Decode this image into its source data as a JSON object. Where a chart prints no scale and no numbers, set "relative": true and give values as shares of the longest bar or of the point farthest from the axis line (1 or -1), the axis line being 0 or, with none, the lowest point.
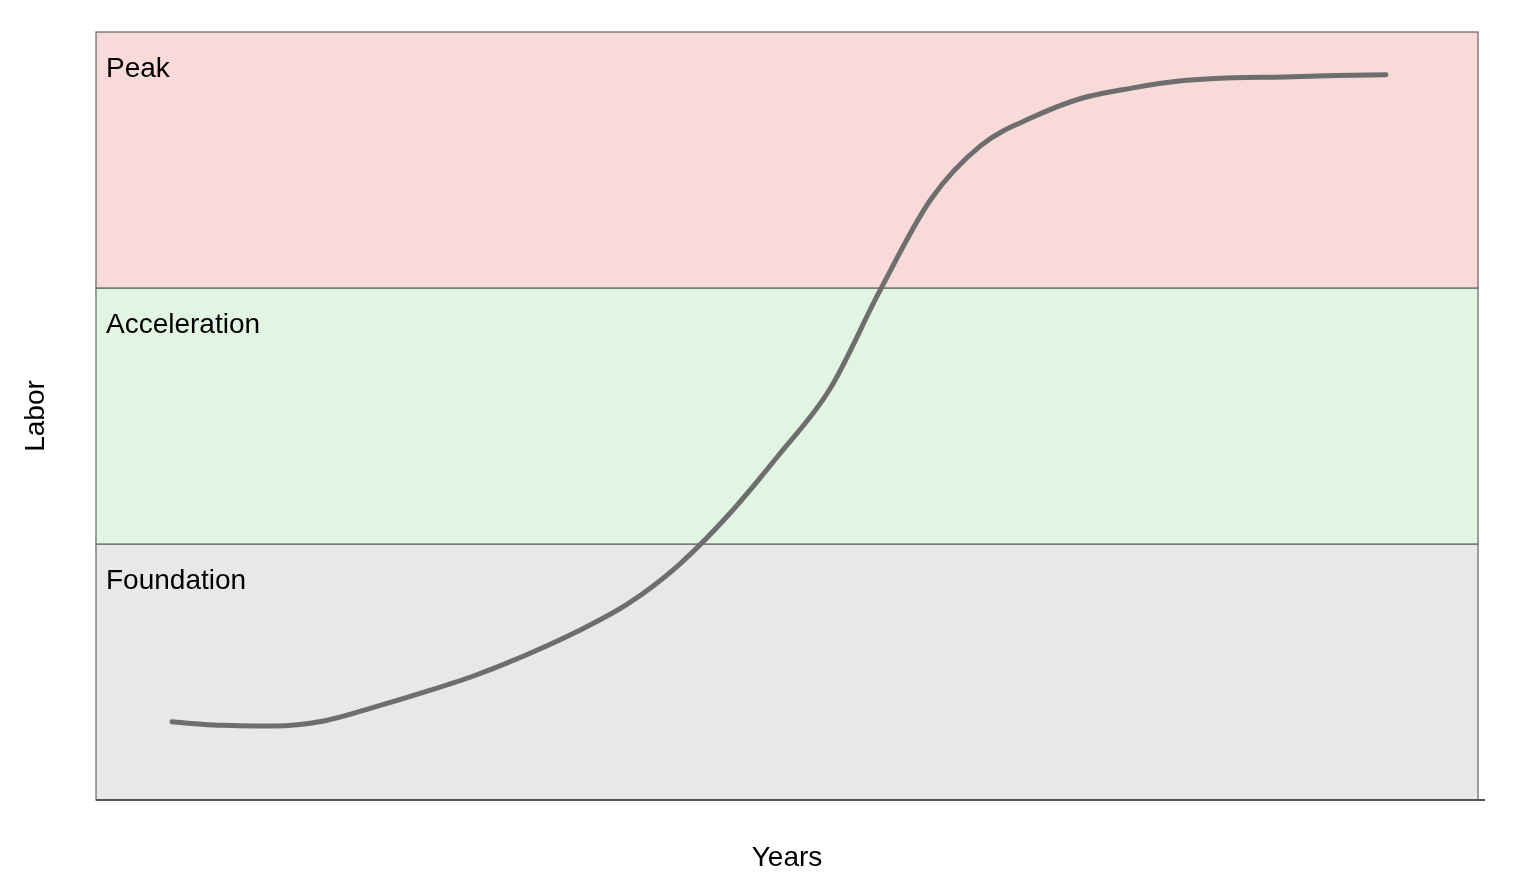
{
  "chart_data": {
    "type": "line",
    "relative": true,
    "xlabel": "Years",
    "ylabel": "Labor",
    "categories": [
      null,
      null,
      null,
      null,
      null,
      null,
      null,
      null,
      null,
      null,
      null,
      null,
      null,
      null,
      null,
      null,
      null,
      null,
      null,
      null,
      null,
      null,
      null,
      null,
      null
    ],
    "series": [
      {
        "color": "#6e6e6e",
        "values": [
          0.108,
          0.103,
          0.102,
          0.109,
          0.128,
          0.149,
          0.172,
          0.2,
          0.232,
          0.27,
          0.323,
          0.393,
          0.476,
          0.566,
          0.703,
          0.828,
          0.903,
          0.941,
          0.968,
          0.982,
          0.992,
          0.996,
          0.997,
          0.999,
          1
        ]
      }
    ],
    "bands": [
      {
        "axis": "y",
        "from": 0,
        "to": 0.353,
        "label": "Foundation",
        "color": "#e8e8e8"
      },
      {
        "axis": "y",
        "from": 0.353,
        "to": 0.706,
        "label": "Acceleration",
        "color": "#e2f4e2"
      },
      {
        "axis": "y",
        "from": 0.706,
        "to": 1.059,
        "label": "Peak",
        "color": "#f8dad8"
      }
    ]
  }
}
